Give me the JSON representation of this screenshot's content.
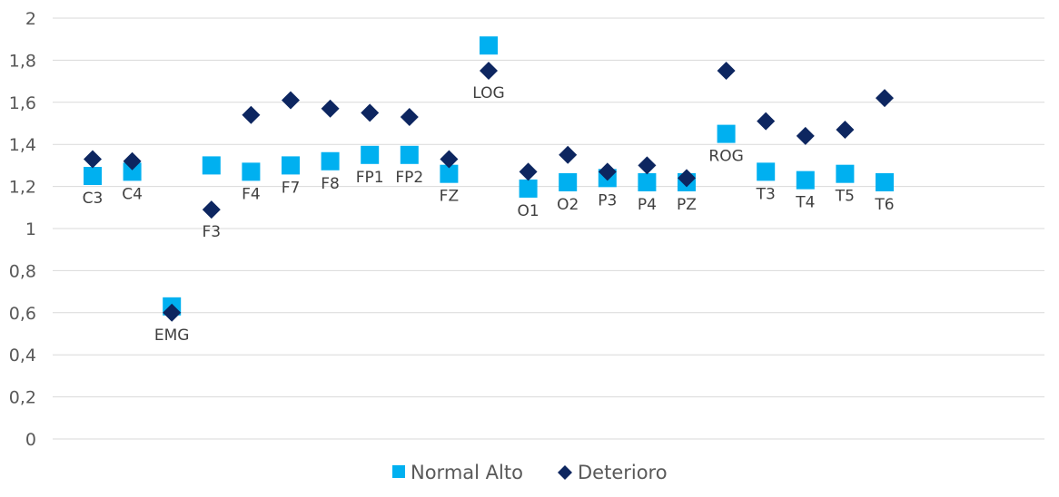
{
  "chart_data": {
    "type": "scatter",
    "categories": [
      "C3",
      "C4",
      "EMG",
      "F3",
      "F4",
      "F7",
      "F8",
      "FP1",
      "FP2",
      "FZ",
      "LOG",
      "O1",
      "O2",
      "P3",
      "P4",
      "PZ",
      "ROG",
      "T3",
      "T4",
      "T5",
      "T6"
    ],
    "series": [
      {
        "name": "Normal Alto",
        "marker": "square",
        "color": "#00b0f0",
        "values": [
          1.25,
          1.27,
          0.63,
          1.3,
          1.27,
          1.3,
          1.32,
          1.35,
          1.35,
          1.26,
          1.87,
          1.19,
          1.22,
          1.24,
          1.22,
          1.22,
          1.45,
          1.27,
          1.23,
          1.26,
          1.22
        ]
      },
      {
        "name": "Deterioro",
        "marker": "diamond",
        "color": "#0d2660",
        "values": [
          1.33,
          1.32,
          0.6,
          1.09,
          1.54,
          1.61,
          1.57,
          1.55,
          1.53,
          1.33,
          1.75,
          1.27,
          1.35,
          1.27,
          1.3,
          1.24,
          1.75,
          1.51,
          1.44,
          1.47,
          1.62
        ]
      }
    ],
    "ylim": [
      0,
      2
    ],
    "yticks": [
      "0",
      "0,2",
      "0,4",
      "0,6",
      "0,8",
      "1",
      "1,2",
      "1,4",
      "1,6",
      "1,8",
      "2"
    ],
    "grid": true,
    "legend_position": "bottom"
  }
}
